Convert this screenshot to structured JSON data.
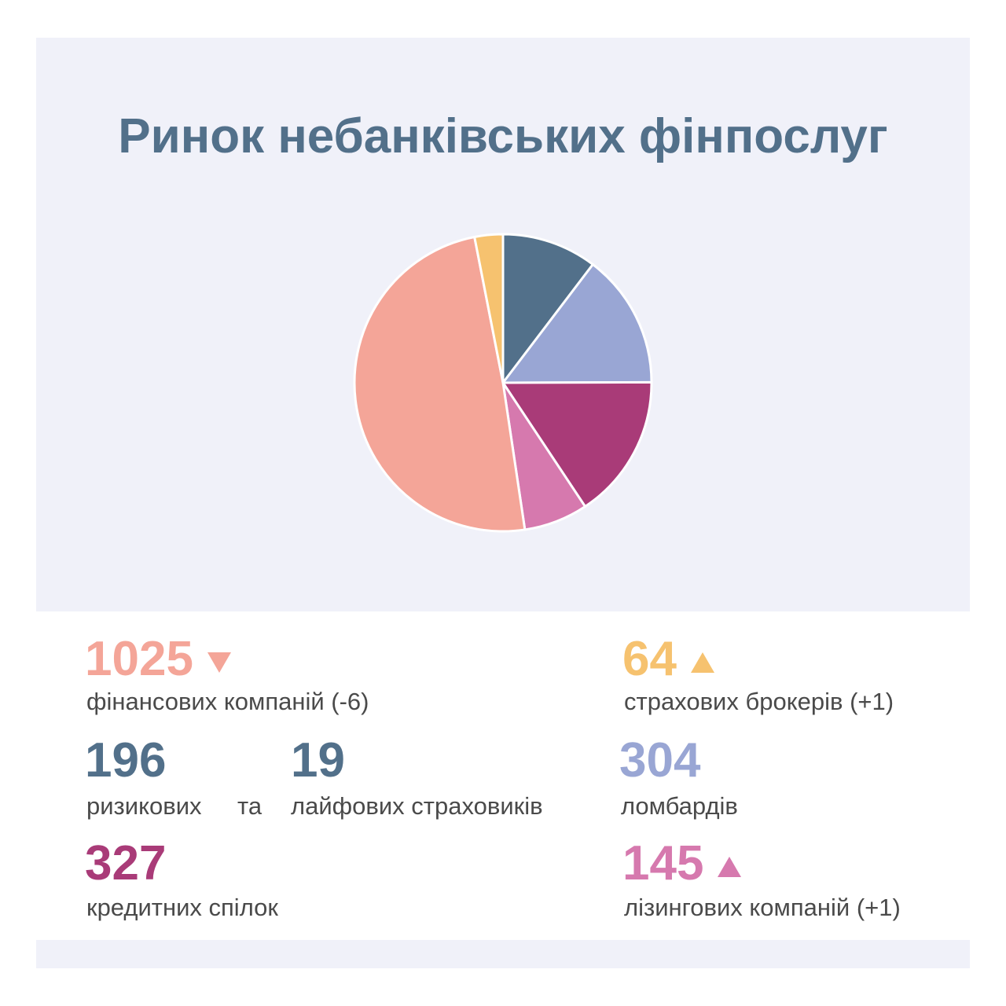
{
  "title": "Ринок небанківських фінпослуг",
  "colors": {
    "finance": "#f4a598",
    "brokers": "#f6c26f",
    "risk": "#52708a",
    "life": "#52708a",
    "pawnshops": "#99a6d4",
    "credit": "#a93b78",
    "leasing": "#d679ae",
    "slice_stroke": "#ffffff"
  },
  "stats": {
    "finance": {
      "value": "1025",
      "label": "фінансових компаній (-6)",
      "trend": "down"
    },
    "brokers": {
      "value": "64",
      "label": "страхових брокерів (+1)",
      "trend": "up"
    },
    "risk": {
      "value": "196",
      "label": "ризикових"
    },
    "conj": "та",
    "life": {
      "value": "19",
      "label": "лайфових страховиків"
    },
    "pawnshops": {
      "value": "304",
      "label": "ломбардів"
    },
    "credit": {
      "value": "327",
      "label": "кредитних спілок"
    },
    "leasing": {
      "value": "145",
      "label": "лізингових компаній (+1)",
      "trend": "up"
    }
  },
  "chart_data": {
    "type": "pie",
    "slices": [
      {
        "name": "страховики",
        "value": 215,
        "color": "#52708a"
      },
      {
        "name": "ломбарди",
        "value": 304,
        "color": "#99a6d4"
      },
      {
        "name": "кредитні спілки",
        "value": 327,
        "color": "#a93b78"
      },
      {
        "name": "лізингові компанії",
        "value": 145,
        "color": "#d679ae"
      },
      {
        "name": "фінансові компанії",
        "value": 1025,
        "color": "#f4a598"
      },
      {
        "name": "страхові брокери",
        "value": 64,
        "color": "#f6c26f"
      }
    ]
  }
}
